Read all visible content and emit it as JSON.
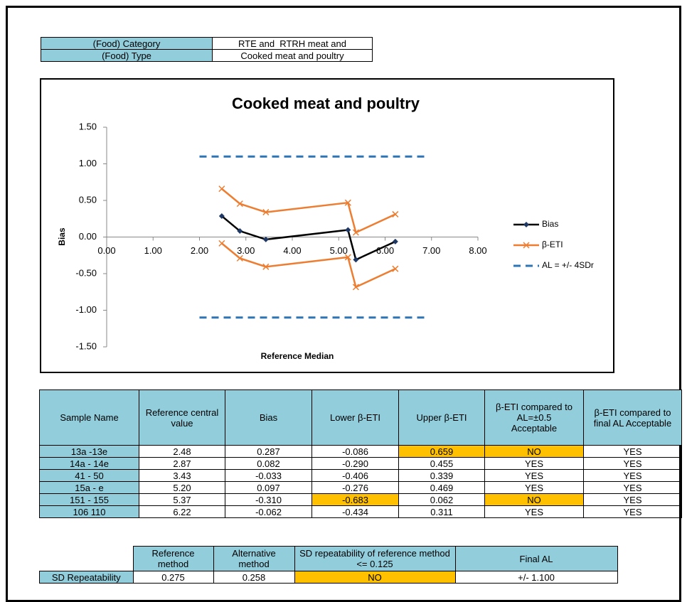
{
  "info_table": {
    "rows": [
      [
        "(Food) Category",
        "RTE and  RTRH meat and"
      ],
      [
        "(Food) Type",
        "Cooked meat and poultry"
      ]
    ]
  },
  "chart_data": {
    "type": "line",
    "title": "Cooked meat and poultry",
    "x_label": "Reference Median",
    "y_label": "Bias",
    "xlim": [
      0,
      8
    ],
    "xticks": [
      {
        "value": 0,
        "label": "0.00"
      },
      {
        "value": 1,
        "label": "1.00"
      },
      {
        "value": 2,
        "label": "2.00"
      },
      {
        "value": 3,
        "label": "3.00"
      },
      {
        "value": 4,
        "label": "4.00"
      },
      {
        "value": 5,
        "label": "5.00"
      },
      {
        "value": 6,
        "label": "6.00"
      },
      {
        "value": 7,
        "label": "7.00"
      },
      {
        "value": 8,
        "label": "8.00"
      }
    ],
    "ylim": [
      -1.5,
      1.5
    ],
    "yticks": [
      {
        "value": 1.5,
        "label": "1.50"
      },
      {
        "value": 1,
        "label": "1.00"
      },
      {
        "value": 0.5,
        "label": "0.50"
      },
      {
        "value": 0,
        "label": "0.00"
      },
      {
        "value": -0.5,
        "label": "-0.50"
      },
      {
        "value": -1,
        "label": "-1.00"
      },
      {
        "value": -1.5,
        "label": "-1.50"
      }
    ],
    "x": [
      2.48,
      2.87,
      3.43,
      5.2,
      5.37,
      6.22
    ],
    "series": [
      {
        "name": "Bias",
        "color": "#000000",
        "marker": "diamond",
        "values": [
          0.287,
          0.082,
          -0.033,
          0.097,
          -0.31,
          -0.062
        ]
      },
      {
        "name": "β-ETI",
        "color": "#ED7D31",
        "marker": "x",
        "values": [
          0.659,
          0.455,
          0.339,
          0.469,
          0.062,
          0.311
        ],
        "lower": [
          -0.086,
          -0.29,
          -0.406,
          -0.276,
          -0.683,
          -0.434
        ]
      },
      {
        "name": "AL = +/- 4SDr",
        "color": "#2E75B6",
        "dashed": true,
        "x": [
          2,
          6.9
        ],
        "values": [
          1.1,
          1.1
        ],
        "lower": [
          -1.1,
          -1.1
        ]
      }
    ]
  },
  "results_table": {
    "header": [
      "Sample Name",
      "Reference central value",
      "Bias",
      "Lower β-ETI",
      "Upper β-ETI",
      "β-ETI compared to AL=±0.5 Acceptable",
      "β-ETI compared to final AL Acceptable"
    ],
    "rows": [
      [
        "13a -13e",
        "2.48",
        "0.287",
        "-0.086",
        "0.659",
        "NO",
        "YES"
      ],
      [
        "14a - 14e",
        "2.87",
        "0.082",
        "-0.290",
        "0.455",
        "YES",
        "YES"
      ],
      [
        "41 - 50",
        "3.43",
        "-0.033",
        "-0.406",
        "0.339",
        "YES",
        "YES"
      ],
      [
        "15a - e",
        "5.20",
        "0.097",
        "-0.276",
        "0.469",
        "YES",
        "YES"
      ],
      [
        "151 - 155",
        "5.37",
        "-0.310",
        "-0.683",
        "0.062",
        "NO",
        "YES"
      ],
      [
        "106 110",
        "6.22",
        "-0.062",
        "-0.434",
        "0.311",
        "YES",
        "YES"
      ]
    ]
  },
  "repeatability_table": {
    "header": [
      "Reference method",
      "Alternative method",
      "SD repeatability of reference method <= 0.125",
      "Final AL"
    ],
    "row": [
      "SD Repeatability",
      "0.275",
      "0.258",
      "NO",
      "+/- 1.100"
    ]
  }
}
